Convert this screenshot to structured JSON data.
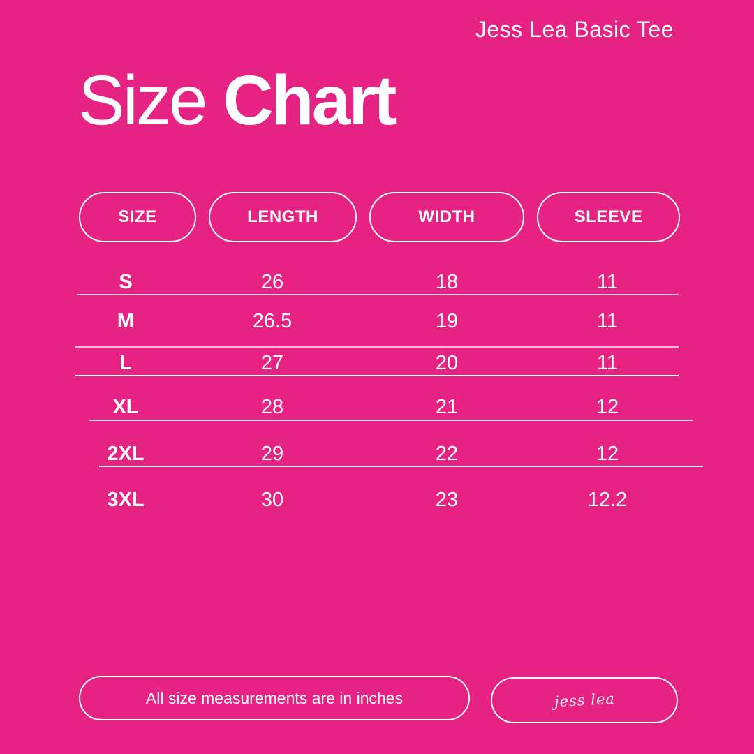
{
  "page": {
    "brand": "Jess Lea Basic Tee",
    "title_light": "Size",
    "title_bold": "Chart"
  },
  "colors": {
    "background": "#E62382",
    "text": "#FFFFFF",
    "divider": "#FFFFFF"
  },
  "table": {
    "headers": {
      "size": "SIZE",
      "length": "LENGTH",
      "width": "WIDTH",
      "sleeve": "SLEEVE"
    },
    "rows": [
      {
        "size": "S",
        "length": "26",
        "width": "18",
        "sleeve": "11"
      },
      {
        "size": "M",
        "length": "26.5",
        "width": "19",
        "sleeve": "11"
      },
      {
        "size": "L",
        "length": "27",
        "width": "20",
        "sleeve": "11"
      },
      {
        "size": "XL",
        "length": "28",
        "width": "21",
        "sleeve": "12"
      },
      {
        "size": "2XL",
        "length": "29",
        "width": "22",
        "sleeve": "12"
      },
      {
        "size": "3XL",
        "length": "30",
        "width": "23",
        "sleeve": "12.2"
      }
    ]
  },
  "footer": {
    "note": "All size measurements are in inches",
    "signature": "jess lea"
  },
  "chart_data": {
    "type": "table",
    "title": "Size Chart",
    "subtitle": "Jess Lea Basic Tee",
    "columns": [
      "SIZE",
      "LENGTH",
      "WIDTH",
      "SLEEVE"
    ],
    "rows": [
      [
        "S",
        26,
        18,
        11
      ],
      [
        "M",
        26.5,
        19,
        11
      ],
      [
        "L",
        27,
        20,
        11
      ],
      [
        "XL",
        28,
        21,
        12
      ],
      [
        "2XL",
        29,
        22,
        12
      ],
      [
        "3XL",
        30,
        23,
        12.2
      ]
    ],
    "units_note": "All size measurements are in inches"
  }
}
